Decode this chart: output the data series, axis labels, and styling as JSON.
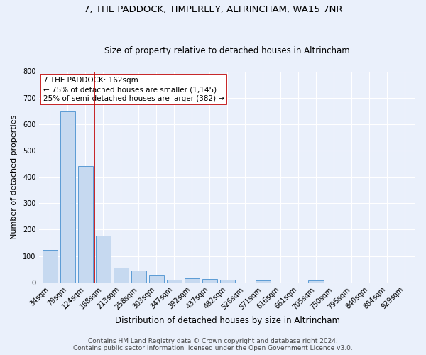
{
  "title": "7, THE PADDOCK, TIMPERLEY, ALTRINCHAM, WA15 7NR",
  "subtitle": "Size of property relative to detached houses in Altrincham",
  "xlabel": "Distribution of detached houses by size in Altrincham",
  "ylabel": "Number of detached properties",
  "bar_labels": [
    "34sqm",
    "79sqm",
    "124sqm",
    "168sqm",
    "213sqm",
    "258sqm",
    "303sqm",
    "347sqm",
    "392sqm",
    "437sqm",
    "482sqm",
    "526sqm",
    "571sqm",
    "616sqm",
    "661sqm",
    "705sqm",
    "750sqm",
    "795sqm",
    "840sqm",
    "884sqm",
    "929sqm"
  ],
  "bar_values": [
    124,
    648,
    440,
    178,
    57,
    45,
    26,
    11,
    15,
    14,
    9,
    0,
    8,
    0,
    0,
    8,
    0,
    0,
    0,
    0,
    0
  ],
  "bar_color": "#c6d9f0",
  "bar_edge_color": "#5b9bd5",
  "vline_color": "#c00000",
  "annotation_line1": "7 THE PADDOCK: 162sqm",
  "annotation_line2": "← 75% of detached houses are smaller (1,145)",
  "annotation_line3": "25% of semi-detached houses are larger (382) →",
  "annotation_box_color": "white",
  "annotation_box_edge": "#c00000",
  "ylim": [
    0,
    800
  ],
  "yticks": [
    0,
    100,
    200,
    300,
    400,
    500,
    600,
    700,
    800
  ],
  "background_color": "#eaf0fb",
  "grid_color": "white",
  "footer_line1": "Contains HM Land Registry data © Crown copyright and database right 2024.",
  "footer_line2": "Contains public sector information licensed under the Open Government Licence v3.0.",
  "title_fontsize": 9.5,
  "subtitle_fontsize": 8.5,
  "xlabel_fontsize": 8.5,
  "ylabel_fontsize": 8,
  "tick_fontsize": 7,
  "annotation_fontsize": 7.5,
  "footer_fontsize": 6.5
}
